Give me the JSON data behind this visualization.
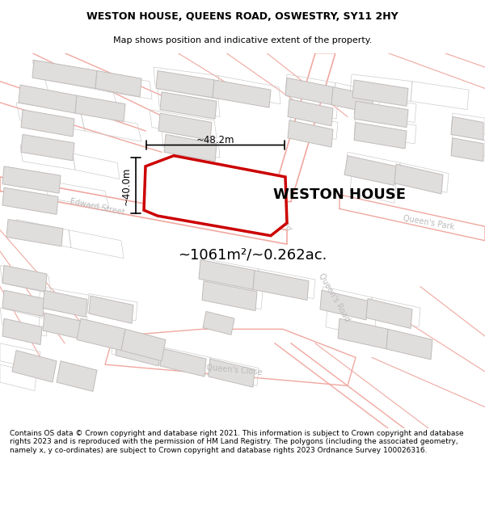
{
  "title_line1": "WESTON HOUSE, QUEENS ROAD, OSWESTRY, SY11 2HY",
  "title_line2": "Map shows position and indicative extent of the property.",
  "property_label": "WESTON HOUSE",
  "area_label": "~1061m²/~0.262ac.",
  "dim_height": "~40.0m",
  "dim_width": "~48.2m",
  "footer_text": "Contains OS data © Crown copyright and database right 2021. This information is subject to Crown copyright and database rights 2023 and is reproduced with the permission of HM Land Registry. The polygons (including the associated geometry, namely x, y co-ordinates) are subject to Crown copyright and database rights 2023 Ordnance Survey 100026316.",
  "map_bg": "#ffffff",
  "building_color": "#e0dedd",
  "building_edge": "#c0bcba",
  "road_line_color": "#f0a8a0",
  "plot_line_color": "#cccccc",
  "red_poly_color": "#dd0000",
  "street_label_color": "#bbbbbb",
  "title_fontsize": 9,
  "footer_fontsize": 6.5
}
